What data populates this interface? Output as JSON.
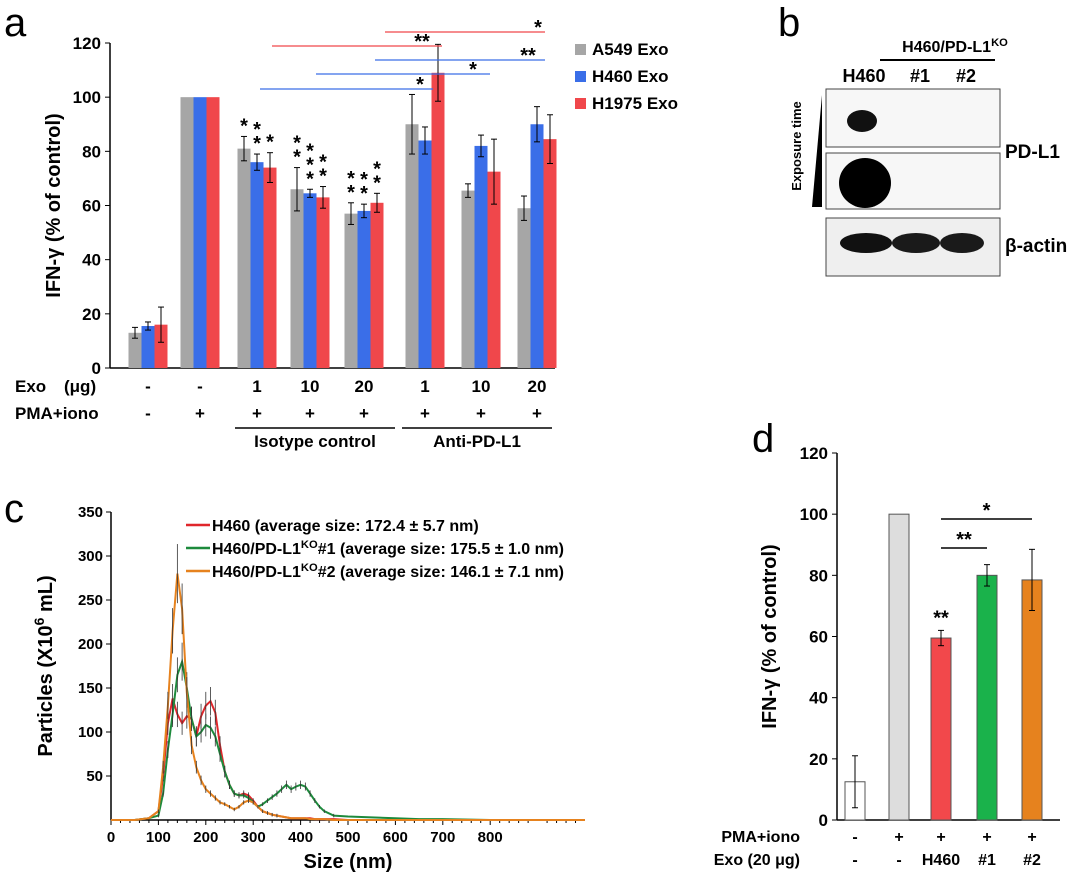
{
  "panels": {
    "a": "a",
    "b": "b",
    "c": "c",
    "d": "d"
  },
  "chart_data": [
    {
      "panel": "a",
      "type": "bar",
      "ylabel": "IFN-γ (% of control)",
      "ylim": [
        0,
        120
      ],
      "yticks": [
        0,
        20,
        40,
        60,
        80,
        100,
        120
      ],
      "series": [
        {
          "name": "A549 Exo",
          "color": "#a6a6a6",
          "values": [
            13,
            100,
            81,
            66,
            57,
            90,
            65.5,
            59
          ],
          "errors": [
            2,
            0,
            4.5,
            8,
            4,
            11,
            2.5,
            4.5
          ]
        },
        {
          "name": "H460 Exo",
          "color": "#3a6ee8",
          "values": [
            15.5,
            100,
            76,
            64.5,
            58,
            84,
            82,
            90
          ],
          "errors": [
            1.5,
            0,
            3,
            1.5,
            2.5,
            5,
            4,
            6.5
          ]
        },
        {
          "name": "H1975 Exo",
          "color": "#f0474b",
          "values": [
            16,
            100,
            74,
            63,
            61,
            109,
            72.5,
            84.5
          ],
          "errors": [
            6.5,
            0,
            5.5,
            4,
            3.5,
            10.5,
            12,
            9
          ]
        }
      ],
      "significance": [
        [
          "",
          "",
          ""
        ],
        [
          "",
          "",
          ""
        ],
        [
          "*",
          "**",
          "*"
        ],
        [
          "**",
          "***",
          "**"
        ],
        [
          "**",
          "**",
          "**"
        ],
        [
          "",
          "",
          ""
        ],
        [
          "",
          "",
          ""
        ],
        [
          "",
          "",
          ""
        ]
      ],
      "comparisons": [
        {
          "label": "*",
          "color": "#f0474b"
        },
        {
          "label": "**",
          "color": "#f0474b"
        },
        {
          "label": "**",
          "color": "#3a6ee8"
        },
        {
          "label": "*",
          "color": "#3a6ee8"
        },
        {
          "label": "*",
          "color": "#3a6ee8"
        }
      ],
      "row_labels": {
        "exo": "Exo",
        "exo_unit": "(μg)",
        "pma": "PMA+iono"
      },
      "exo_row": [
        "-",
        "-",
        "1",
        "10",
        "20",
        "1",
        "10",
        "20"
      ],
      "pma_row": [
        "-",
        "+",
        "+",
        "+",
        "+",
        "+",
        "+",
        "+"
      ],
      "groups": [
        "Isotype control",
        "Anti-PD-L1"
      ]
    },
    {
      "panel": "b",
      "type": "blot",
      "header": "H460/PD-L1",
      "header_sup": "KO",
      "lanes": [
        "H460",
        "#1",
        "#2"
      ],
      "exposure_label": "Exposure time",
      "bands": [
        "PD-L1",
        "β-actin"
      ]
    },
    {
      "panel": "c",
      "type": "line",
      "xlabel": "Size (nm)",
      "ylabel_main": "Particles (X10",
      "ylabel_sup": "6",
      "ylabel_tail": " mL)",
      "xlim": [
        0,
        1000
      ],
      "ylim": [
        0,
        350
      ],
      "xticks": [
        0,
        100,
        200,
        300,
        400,
        500,
        600,
        700,
        800
      ],
      "yticks": [
        50,
        100,
        150,
        200,
        250,
        300,
        350
      ],
      "x": [
        0,
        50,
        80,
        100,
        110,
        120,
        130,
        140,
        150,
        160,
        170,
        180,
        190,
        200,
        210,
        220,
        230,
        240,
        250,
        260,
        270,
        280,
        290,
        300,
        310,
        320,
        330,
        340,
        350,
        360,
        370,
        380,
        390,
        400,
        410,
        420,
        430,
        440,
        450,
        470,
        500,
        550,
        600,
        650,
        700,
        800,
        1000
      ],
      "series": [
        {
          "name": "H460",
          "label": "(average size: 172.4 ± 5.7 nm)",
          "color": "#e0262b",
          "values": [
            0,
            0,
            2,
            10,
            50,
            110,
            138,
            120,
            110,
            118,
            115,
            95,
            118,
            130,
            135,
            122,
            85,
            55,
            40,
            30,
            28,
            30,
            28,
            22,
            15,
            10,
            8,
            6,
            5,
            4,
            3,
            2,
            2,
            2,
            2,
            2,
            1,
            1,
            1,
            1,
            0,
            0,
            0,
            0,
            0,
            0,
            0
          ]
        },
        {
          "name": "H460/PD-L1",
          "sup": "KO",
          "suffix": "#1",
          "label": "(average size: 175.5 ± 1.0 nm)",
          "color": "#1d8a3c",
          "values": [
            0,
            0,
            2,
            5,
            30,
            80,
            120,
            165,
            180,
            150,
            115,
            95,
            100,
            108,
            105,
            95,
            75,
            55,
            40,
            30,
            28,
            28,
            25,
            20,
            15,
            18,
            22,
            26,
            30,
            35,
            40,
            35,
            38,
            40,
            38,
            30,
            22,
            15,
            10,
            5,
            4,
            3,
            2,
            1,
            1,
            0,
            0
          ]
        },
        {
          "name": "H460/PD-L1",
          "sup": "KO",
          "suffix": "#2",
          "label": "(average size: 146.1 ± 7.1 nm)",
          "color": "#e6821e",
          "values": [
            0,
            0,
            2,
            10,
            60,
            130,
            215,
            280,
            240,
            145,
            85,
            60,
            45,
            35,
            30,
            25,
            20,
            18,
            15,
            12,
            15,
            20,
            22,
            20,
            15,
            10,
            8,
            6,
            5,
            4,
            3,
            2,
            2,
            2,
            2,
            1,
            1,
            1,
            1,
            0,
            0,
            0,
            0,
            0,
            0,
            0,
            0
          ]
        }
      ]
    },
    {
      "panel": "d",
      "type": "bar",
      "ylabel": "IFN-γ (% of control)",
      "ylim": [
        0,
        120
      ],
      "yticks": [
        0,
        20,
        40,
        60,
        80,
        100,
        120
      ],
      "values": [
        12.5,
        100,
        59.5,
        80,
        78.5
      ],
      "errors": [
        8.5,
        0,
        2.5,
        3.5,
        10
      ],
      "colors": [
        "#ffffff",
        "#dddddd",
        "#f2484b",
        "#1ab24b",
        "#e6821e"
      ],
      "significance": [
        "",
        "",
        "**",
        "",
        ""
      ],
      "comparisons": [
        {
          "label": "**"
        },
        {
          "label": "*"
        }
      ],
      "row_labels": {
        "pma": "PMA+iono",
        "exo": "Exo (20 μg)"
      },
      "pma_row": [
        "-",
        "+",
        "+",
        "+",
        "+"
      ],
      "exo_row": [
        "-",
        "-",
        "H460",
        "#1",
        "#2"
      ]
    }
  ]
}
